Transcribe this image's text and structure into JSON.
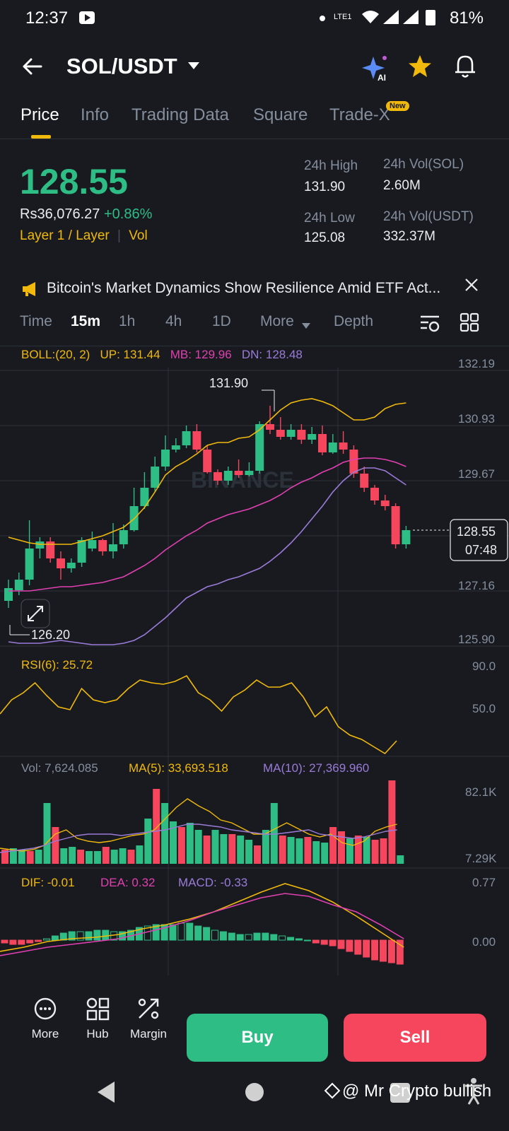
{
  "status_bar": {
    "time": "12:37",
    "battery": "81%",
    "network": "LTE1"
  },
  "header": {
    "pair": "SOL/USDT"
  },
  "tabs": [
    {
      "label": "Price",
      "active": true
    },
    {
      "label": "Info"
    },
    {
      "label": "Trading Data"
    },
    {
      "label": "Square"
    },
    {
      "label": "Trade-X",
      "badge": "New"
    }
  ],
  "ticker": {
    "price": "128.55",
    "fiat": "Rs36,076.27",
    "change": "+0.86%",
    "tag": "Layer 1 / Layer",
    "tag2": "Vol",
    "high_label": "24h High",
    "high": "131.90",
    "low_label": "24h Low",
    "low": "125.08",
    "vol_sol_label": "24h Vol(SOL)",
    "vol_sol": "2.60M",
    "vol_usdt_label": "24h Vol(USDT)",
    "vol_usdt": "332.37M"
  },
  "news": {
    "text": "Bitcoin's Market Dynamics Show Resilience Amid ETF Act..."
  },
  "timeframes": [
    "Time",
    "15m",
    "1h",
    "4h",
    "1D",
    "More",
    "Depth"
  ],
  "selected_timeframe": "15m",
  "boll": {
    "label": "BOLL:(20, 2)",
    "up": "UP: 131.44",
    "mb": "MB: 129.96",
    "dn": "DN: 128.48"
  },
  "price_axis": [
    "132.19",
    "130.93",
    "129.67",
    "127.16",
    "125.90"
  ],
  "chart_annotations": {
    "high": "131.90",
    "low": "126.20",
    "current": "128.55",
    "countdown": "07:48"
  },
  "watermark": "BINANCE",
  "rsi": {
    "label": "RSI(6): 25.72",
    "axis_top": "90.0",
    "axis_mid": "50.0"
  },
  "vol": {
    "label": "Vol: 7,624.085",
    "ma5": "MA(5): 33,693.518",
    "ma10": "MA(10): 27,369.960",
    "axis_top": "82.1K",
    "axis_bottom": "7.29K"
  },
  "macd": {
    "dif": "DIF: -0.01",
    "dea": "DEA: 0.32",
    "macd": "MACD: -0.33",
    "axis_top": "0.77",
    "axis_mid": "0.00"
  },
  "actions": {
    "more": "More",
    "hub": "Hub",
    "margin": "Margin",
    "buy": "Buy",
    "sell": "Sell"
  },
  "colors": {
    "up": "#2ebd85",
    "down": "#f6465d",
    "accent": "#f0b90b",
    "ma_mid": "#e040b0",
    "ma_dn": "#9b7bd8"
  },
  "overlay": {
    "credit": "@ Mr Crypto bullish"
  }
}
